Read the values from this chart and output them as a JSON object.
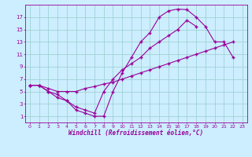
{
  "line1_x": [
    0,
    1,
    2,
    3,
    4,
    5,
    6,
    7,
    8,
    9,
    10,
    11,
    12,
    13,
    14,
    15,
    16,
    17,
    18,
    19,
    20,
    21,
    22
  ],
  "line1_y": [
    6,
    6,
    5,
    4,
    3.5,
    2,
    1.5,
    1,
    1,
    5,
    8,
    10.5,
    13,
    14.5,
    17,
    18,
    18.3,
    18.2,
    17,
    15.5,
    13,
    13,
    10.5
  ],
  "line2_x": [
    0,
    1,
    2,
    3,
    4,
    5,
    6,
    7,
    8,
    9,
    10,
    11,
    12,
    13,
    14,
    15,
    16,
    17,
    18,
    19,
    20,
    21,
    22
  ],
  "line2_y": [
    6,
    6,
    5.5,
    5,
    5,
    5,
    5.5,
    5.8,
    6.2,
    6.5,
    7,
    7.5,
    8,
    8.5,
    9,
    9.5,
    10,
    10.5,
    11,
    11.5,
    12,
    12.5,
    13
  ],
  "line3_x": [
    0,
    1,
    2,
    3,
    4,
    5,
    6,
    7,
    8,
    9,
    10,
    11,
    12,
    13,
    14,
    15,
    16,
    17,
    18
  ],
  "line3_y": [
    6,
    6,
    5,
    4.5,
    3.5,
    2.5,
    2,
    1.5,
    5,
    7,
    8.5,
    9.5,
    10.5,
    12,
    13,
    14,
    15,
    16.5,
    15.5
  ],
  "line_color": "#990099",
  "bg_color": "#cceeff",
  "grid_color": "#99cccc",
  "xlabel": "Windchill (Refroidissement éolien,°C)",
  "xlim": [
    -0.5,
    23.5
  ],
  "ylim": [
    0,
    19
  ],
  "xticks": [
    0,
    1,
    2,
    3,
    4,
    5,
    6,
    7,
    8,
    9,
    10,
    11,
    12,
    13,
    14,
    15,
    16,
    17,
    18,
    19,
    20,
    21,
    22,
    23
  ],
  "yticks": [
    1,
    3,
    5,
    7,
    9,
    11,
    13,
    15,
    17
  ]
}
